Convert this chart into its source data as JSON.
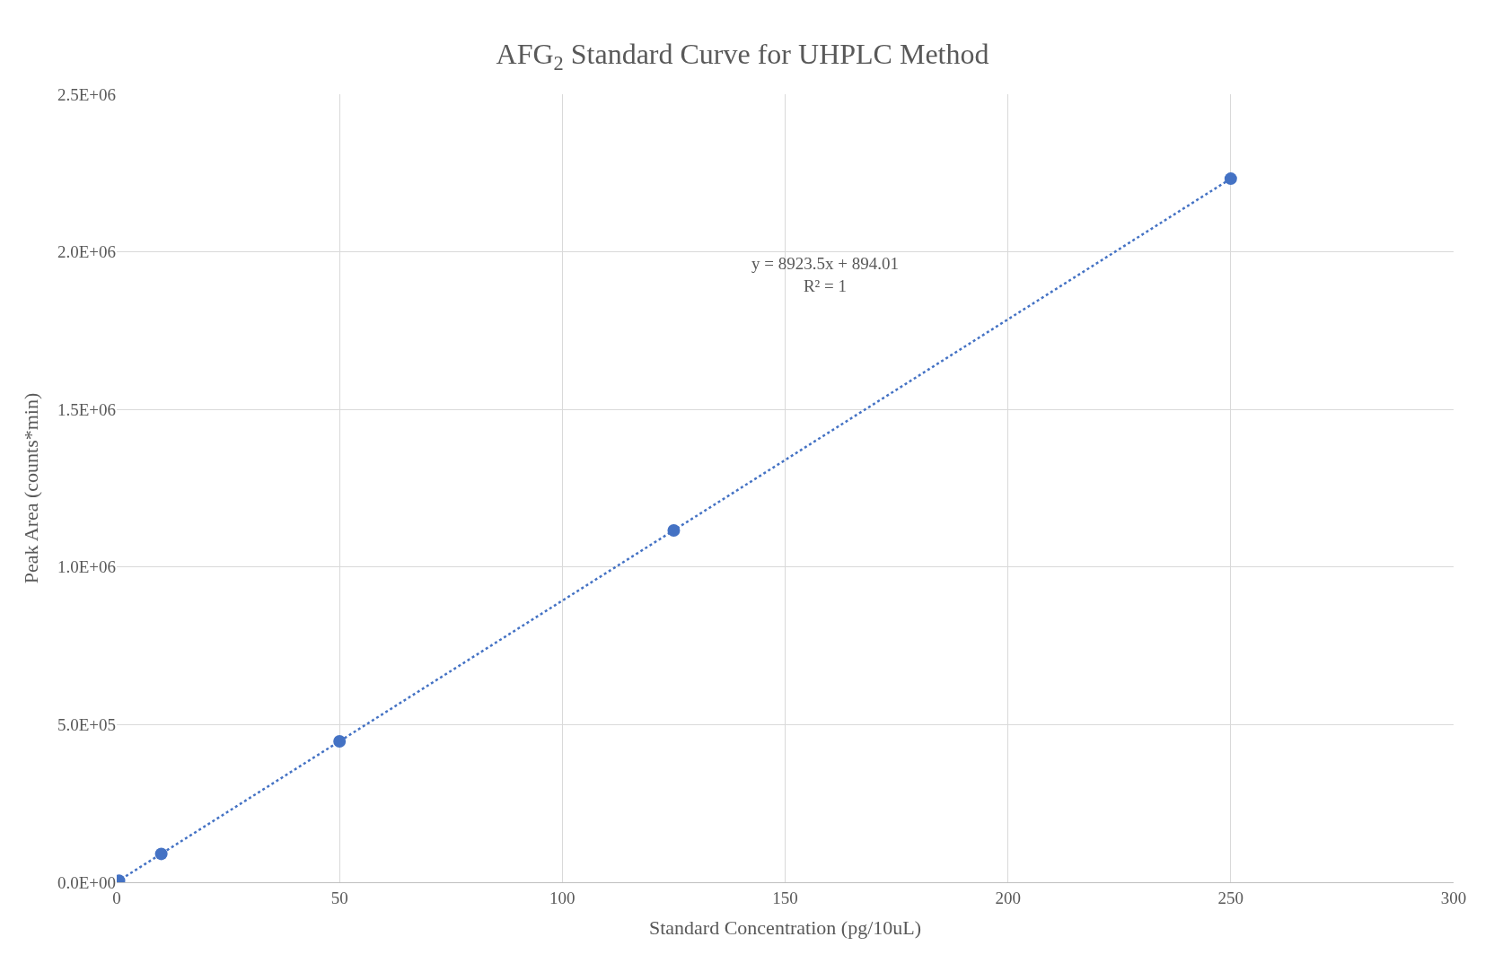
{
  "chart_data": {
    "type": "scatter",
    "title": "AFG$_{2}$ Standard Curve for UHPLC Method",
    "xlabel": "Standard Concentration (pg/10uL)",
    "ylabel": "Peak Area (counts*min)",
    "series": [
      {
        "color": "#4472c4",
        "marker": "circle",
        "x": [
          0.5,
          10,
          50,
          125,
          250
        ],
        "values": [
          5000,
          90000,
          447000,
          1116000,
          2232000
        ]
      },
      {
        "type": "line",
        "color": "#4472c4",
        "marker": "none",
        "line_style": "dotted",
        "x": [
          0,
          250
        ],
        "values": [
          1000,
          2232000
        ]
      }
    ],
    "annotations": [
      "y = 8923.5x + 894.01\nR² = 1"
    ],
    "xlim": [
      0,
      300
    ],
    "xticks": [
      0,
      50,
      100,
      150,
      200,
      250,
      300
    ],
    "ylim": [
      0,
      2500000
    ],
    "yticks": [
      {
        "value": 0,
        "label": "0.0E+00"
      },
      {
        "value": 500000,
        "label": "5.0E+05"
      },
      {
        "value": 1000000,
        "label": "1.0E+06"
      },
      {
        "value": 1500000,
        "label": "1.5E+06"
      },
      {
        "value": 2000000,
        "label": "2.0E+06"
      },
      {
        "value": 2500000,
        "label": "2.5E+06"
      }
    ],
    "grid": true
  }
}
